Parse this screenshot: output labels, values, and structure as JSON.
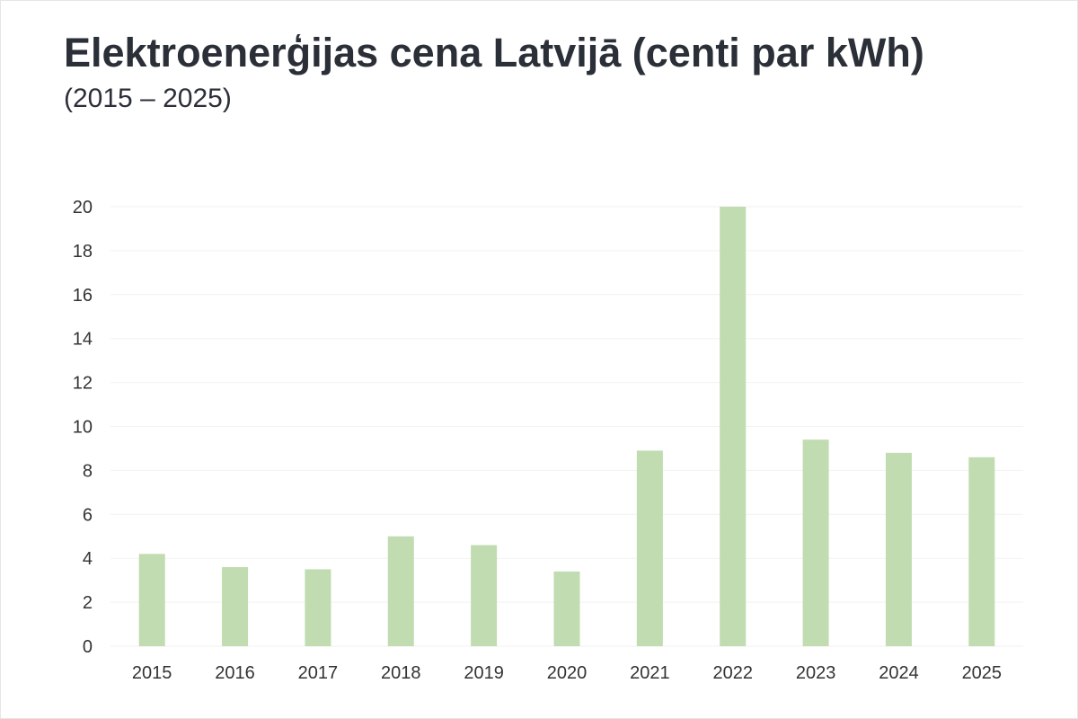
{
  "chart_data": {
    "type": "bar",
    "title": "Elektroenerģijas cena Latvijā (centi par kWh)",
    "subtitle": "(2015 – 2025)",
    "xlabel": "",
    "ylabel": "",
    "categories": [
      "2015",
      "2016",
      "2017",
      "2018",
      "2019",
      "2020",
      "2021",
      "2022",
      "2023",
      "2024",
      "2025"
    ],
    "values": [
      4.2,
      3.6,
      3.5,
      5.0,
      4.6,
      3.4,
      8.9,
      20.0,
      9.4,
      8.8,
      8.6
    ],
    "ylim": [
      0,
      20
    ],
    "yticks": [
      "0",
      "2",
      "4",
      "6",
      "8",
      "10",
      "12",
      "14",
      "16",
      "18",
      "20"
    ],
    "grid": true,
    "legend": "none",
    "colors": {
      "bar": "#c0dcb0",
      "grid": "#f2f2f2",
      "text": "#2b2f38"
    }
  }
}
